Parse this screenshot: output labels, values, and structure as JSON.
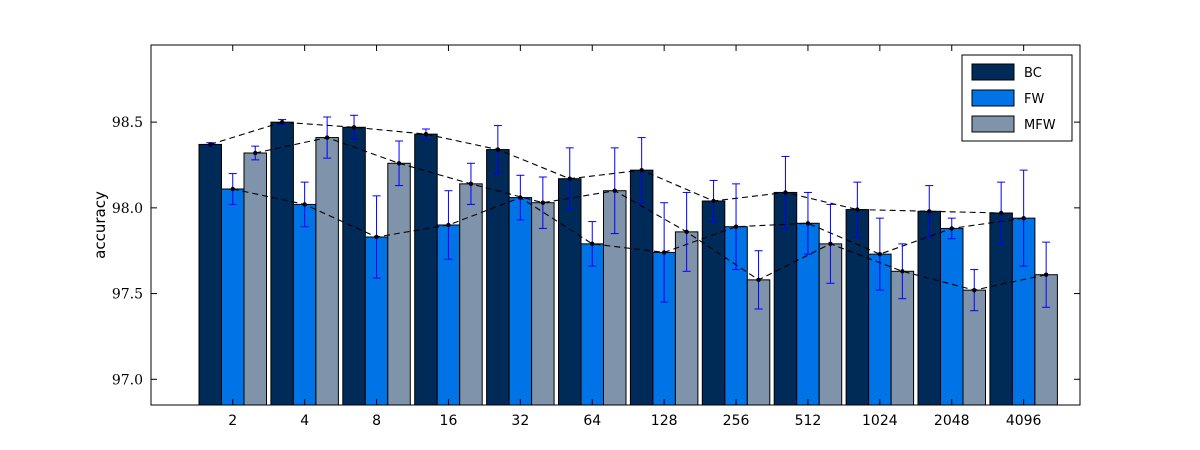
{
  "chart_data": {
    "type": "bar",
    "ylabel": "accuracy",
    "ylim": [
      96.85,
      98.95
    ],
    "yticks": [
      "97.0",
      "97.5",
      "98.0",
      "98.5"
    ],
    "grid": false,
    "legend_position": "top-right",
    "categories": [
      "2",
      "4",
      "8",
      "16",
      "32",
      "64",
      "128",
      "256",
      "512",
      "1024",
      "2048",
      "4096"
    ],
    "series": [
      {
        "name": "BC",
        "color": "#002a58",
        "values": [
          98.37,
          98.5,
          98.47,
          98.43,
          98.34,
          98.17,
          98.22,
          98.04,
          98.09,
          97.99,
          97.98,
          97.97
        ],
        "errors": [
          0.01,
          0.015,
          0.07,
          0.03,
          0.14,
          0.18,
          0.19,
          0.12,
          0.21,
          0.16,
          0.15,
          0.18
        ]
      },
      {
        "name": "FW",
        "color": "#0073e6",
        "values": [
          98.11,
          98.02,
          97.83,
          97.9,
          98.06,
          97.79,
          97.74,
          97.89,
          97.91,
          97.73,
          97.88,
          97.94
        ],
        "errors": [
          0.09,
          0.13,
          0.24,
          0.2,
          0.13,
          0.13,
          0.29,
          0.25,
          0.18,
          0.21,
          0.06,
          0.28
        ]
      },
      {
        "name": "MFW",
        "color": "#7f93ab",
        "values": [
          98.32,
          98.41,
          98.26,
          98.14,
          98.03,
          98.1,
          97.86,
          97.58,
          97.79,
          97.63,
          97.52,
          97.61
        ],
        "errors": [
          0.04,
          0.12,
          0.13,
          0.12,
          0.15,
          0.25,
          0.23,
          0.17,
          0.23,
          0.16,
          0.12,
          0.19
        ]
      }
    ]
  }
}
